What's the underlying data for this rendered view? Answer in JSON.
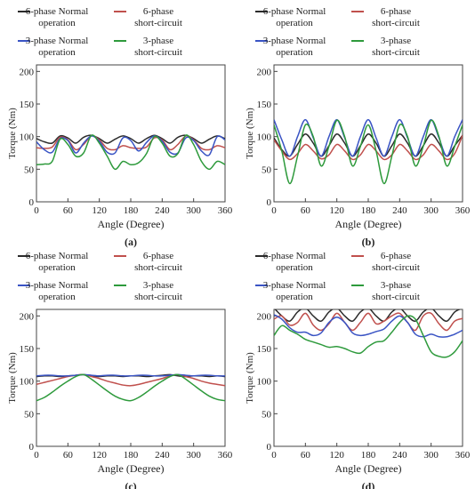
{
  "legend": {
    "six_normal": "6-phase Normal operation",
    "six_short": "6-phase short-circuit",
    "three_normal": "3-phase Normal operation",
    "three_short": "3-phase short-circuit"
  },
  "colors": {
    "six_normal": "#2b2b2b",
    "six_short": "#c0504d",
    "three_normal": "#3a54c4",
    "three_short": "#2e9a3c"
  },
  "chart_data": [
    {
      "type": "line",
      "panel_label": "(a)",
      "xlabel": "Angle (Degree)",
      "ylabel": "Torque (Nm)",
      "xlim": [
        0,
        360
      ],
      "ylim": [
        0,
        210
      ],
      "xticks": [
        0,
        60,
        120,
        180,
        240,
        300,
        360
      ],
      "yticks": [
        0,
        50,
        100,
        150,
        200
      ],
      "legend": "top",
      "grid": false,
      "x": [
        0,
        15,
        30,
        45,
        60,
        75,
        90,
        105,
        120,
        135,
        150,
        165,
        180,
        195,
        210,
        225,
        240,
        255,
        270,
        285,
        300,
        315,
        330,
        345,
        360
      ],
      "series": [
        {
          "name": "6-phase Normal operation",
          "values": [
            97,
            92,
            90,
            101,
            98,
            90,
            99,
            102,
            97,
            90,
            96,
            101,
            97,
            90,
            97,
            102,
            97,
            90,
            99,
            102,
            97,
            90,
            96,
            101,
            97
          ]
        },
        {
          "name": "6-phase short-circuit",
          "values": [
            83,
            82,
            84,
            99,
            95,
            80,
            88,
            101,
            95,
            82,
            80,
            86,
            83,
            82,
            84,
            98,
            95,
            80,
            88,
            101,
            95,
            82,
            80,
            86,
            83
          ]
        },
        {
          "name": "3-phase Normal operation",
          "values": [
            92,
            80,
            76,
            97,
            94,
            75,
            90,
            101,
            93,
            76,
            75,
            98,
            94,
            78,
            91,
            101,
            93,
            76,
            75,
            98,
            94,
            78,
            72,
            100,
            95
          ]
        },
        {
          "name": "3-phase short-circuit",
          "values": [
            57,
            58,
            62,
            96,
            88,
            70,
            75,
            102,
            90,
            70,
            50,
            62,
            57,
            60,
            74,
            100,
            90,
            70,
            74,
            102,
            88,
            62,
            50,
            62,
            57
          ]
        }
      ]
    },
    {
      "type": "line",
      "panel_label": "(b)",
      "xlabel": "Angle (Degree)",
      "ylabel": "Torque (Nm)",
      "xlim": [
        0,
        360
      ],
      "ylim": [
        0,
        210
      ],
      "xticks": [
        0,
        60,
        120,
        180,
        240,
        300,
        360
      ],
      "yticks": [
        0,
        50,
        100,
        150,
        200
      ],
      "legend": "top",
      "grid": false,
      "x": [
        0,
        15,
        30,
        45,
        60,
        75,
        90,
        105,
        120,
        135,
        150,
        165,
        180,
        195,
        210,
        225,
        240,
        255,
        270,
        285,
        300,
        315,
        330,
        345,
        360
      ],
      "series": [
        {
          "name": "6-phase Normal operation",
          "values": [
            98,
            80,
            70,
            88,
            104,
            90,
            70,
            86,
            104,
            90,
            70,
            86,
            104,
            90,
            70,
            86,
            104,
            90,
            70,
            86,
            104,
            90,
            70,
            86,
            102
          ]
        },
        {
          "name": "6-phase short-circuit",
          "values": [
            95,
            78,
            65,
            74,
            88,
            78,
            66,
            72,
            88,
            78,
            65,
            72,
            88,
            78,
            65,
            72,
            88,
            78,
            65,
            72,
            88,
            78,
            65,
            74,
            102
          ]
        },
        {
          "name": "3-phase Normal operation",
          "values": [
            126,
            95,
            70,
            100,
            126,
            98,
            70,
            100,
            126,
            98,
            70,
            100,
            126,
            98,
            70,
            100,
            126,
            98,
            70,
            100,
            126,
            98,
            70,
            100,
            126
          ]
        },
        {
          "name": "3-phase short-circuit",
          "values": [
            118,
            78,
            28,
            70,
            118,
            100,
            55,
            85,
            125,
            100,
            55,
            85,
            118,
            78,
            28,
            70,
            118,
            100,
            55,
            85,
            125,
            100,
            55,
            85,
            118
          ]
        }
      ]
    },
    {
      "type": "line",
      "panel_label": "(c)",
      "xlabel": "Angle (Degree)",
      "ylabel": "Torque (Nm)",
      "xlim": [
        0,
        360
      ],
      "ylim": [
        0,
        210
      ],
      "xticks": [
        0,
        60,
        120,
        180,
        240,
        300,
        360
      ],
      "yticks": [
        0,
        50,
        100,
        150,
        200
      ],
      "legend": "top",
      "grid": false,
      "x": [
        0,
        15,
        30,
        45,
        60,
        75,
        90,
        105,
        120,
        135,
        150,
        165,
        180,
        195,
        210,
        225,
        240,
        255,
        270,
        285,
        300,
        315,
        330,
        345,
        360
      ],
      "series": [
        {
          "name": "6-phase Normal operation",
          "values": [
            107,
            108,
            108,
            107,
            108,
            109,
            110,
            108,
            107,
            108,
            108,
            107,
            108,
            108,
            107,
            108,
            109,
            110,
            108,
            107,
            108,
            108,
            107,
            108,
            107
          ]
        },
        {
          "name": "6-phase short-circuit",
          "values": [
            95,
            98,
            101,
            104,
            107,
            109,
            110,
            107,
            104,
            100,
            97,
            94,
            93,
            95,
            98,
            101,
            104,
            108,
            110,
            107,
            104,
            100,
            97,
            95,
            93
          ]
        },
        {
          "name": "3-phase Normal operation",
          "values": [
            108,
            109,
            109,
            108,
            108,
            109,
            110,
            109,
            108,
            109,
            109,
            108,
            108,
            109,
            109,
            108,
            108,
            109,
            110,
            109,
            108,
            109,
            109,
            108,
            108
          ]
        },
        {
          "name": "3-phase short-circuit",
          "values": [
            70,
            75,
            83,
            92,
            100,
            107,
            110,
            103,
            94,
            85,
            77,
            72,
            70,
            75,
            83,
            92,
            100,
            107,
            110,
            103,
            94,
            85,
            77,
            72,
            70
          ]
        }
      ]
    },
    {
      "type": "line",
      "panel_label": "(d)",
      "xlabel": "Angle (Degree)",
      "ylabel": "Torque (Nm)",
      "xlim": [
        0,
        360
      ],
      "ylim": [
        0,
        210
      ],
      "xticks": [
        0,
        60,
        120,
        180,
        240,
        300,
        360
      ],
      "yticks": [
        0,
        50,
        100,
        150,
        200
      ],
      "legend": "top",
      "grid": false,
      "x": [
        0,
        15,
        30,
        45,
        60,
        75,
        90,
        105,
        120,
        135,
        150,
        165,
        180,
        195,
        210,
        225,
        240,
        255,
        270,
        285,
        300,
        315,
        330,
        345,
        360
      ],
      "series": [
        {
          "name": "6-phase Normal operation",
          "values": [
            212,
            200,
            192,
            206,
            212,
            200,
            192,
            206,
            212,
            200,
            192,
            206,
            212,
            200,
            192,
            206,
            212,
            200,
            192,
            206,
            212,
            200,
            192,
            206,
            212
          ]
        },
        {
          "name": "6-phase short-circuit",
          "values": [
            195,
            200,
            186,
            190,
            204,
            186,
            178,
            188,
            204,
            190,
            178,
            190,
            204,
            188,
            192,
            200,
            204,
            190,
            178,
            200,
            204,
            188,
            178,
            192,
            196
          ]
        },
        {
          "name": "3-phase Normal operation",
          "values": [
            202,
            195,
            182,
            175,
            175,
            170,
            174,
            190,
            198,
            190,
            174,
            170,
            172,
            176,
            180,
            192,
            200,
            190,
            172,
            168,
            172,
            168,
            168,
            172,
            178
          ]
        },
        {
          "name": "3-phase short-circuit",
          "values": [
            170,
            185,
            178,
            172,
            164,
            160,
            156,
            152,
            153,
            150,
            145,
            143,
            153,
            160,
            162,
            175,
            190,
            200,
            195,
            170,
            145,
            138,
            137,
            145,
            162
          ]
        }
      ]
    }
  ]
}
